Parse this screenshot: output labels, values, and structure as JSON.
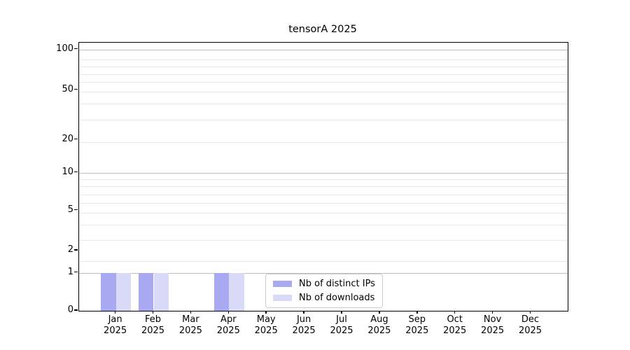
{
  "chart_data": {
    "type": "bar",
    "title": "tensorA 2025",
    "categories": [
      "Jan 2025",
      "Feb 2025",
      "Mar 2025",
      "Apr 2025",
      "May 2025",
      "Jun 2025",
      "Jul 2025",
      "Aug 2025",
      "Sep 2025",
      "Oct 2025",
      "Nov 2025",
      "Dec 2025"
    ],
    "series": [
      {
        "name": "Nb of distinct IPs",
        "color": "#a9a9f2",
        "values": [
          1,
          1,
          0,
          1,
          0,
          0,
          0,
          0,
          0,
          0,
          0,
          0
        ]
      },
      {
        "name": "Nb of downloads",
        "color": "#d9d9f8",
        "values": [
          1,
          1,
          0,
          1,
          0,
          0,
          0,
          0,
          0,
          0,
          0,
          0
        ]
      }
    ],
    "yaxis": {
      "scale": "asinh (log-like above 1, linear 0-1)",
      "tick_labels": [
        "100",
        "50",
        "20",
        "10",
        "5",
        "2",
        "1",
        "0"
      ],
      "range": [
        0,
        120
      ]
    },
    "xlabel": "",
    "ylabel": "",
    "grid": {
      "horizontal_major": true,
      "horizontal_minor": true,
      "vertical": false
    },
    "legend": {
      "position": "lower center"
    }
  }
}
